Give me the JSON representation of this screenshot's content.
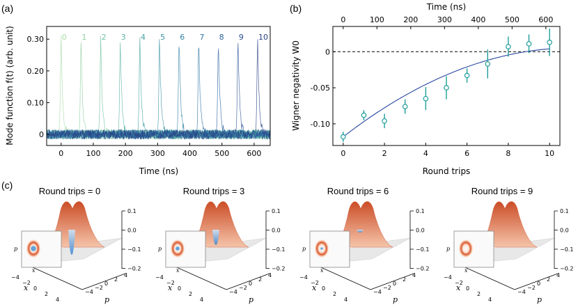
{
  "panel_labels": {
    "a": "(a)",
    "b": "(b)",
    "c": "(c)"
  },
  "chart_data": [
    {
      "type": "line",
      "panel": "(a)",
      "xlabel": "Time (ns)",
      "ylabel": "Mode function f(t) (arb. unit)",
      "xlim": [
        -45,
        650
      ],
      "ylim": [
        -0.035,
        0.34
      ],
      "x_ticks": [
        0,
        100,
        200,
        300,
        400,
        500,
        600
      ],
      "y_ticks": [
        0,
        0.1,
        0.2,
        0.3
      ],
      "y_tick_labels": [
        "0",
        "0.10",
        "0.20",
        "0.30"
      ],
      "series": [
        {
          "name": "0",
          "peak_time": 0,
          "peak_value": 0.3,
          "color": "#a7dba6"
        },
        {
          "name": "1",
          "peak_time": 62,
          "peak_value": 0.3,
          "color": "#8ccf9f"
        },
        {
          "name": "2",
          "peak_time": 123,
          "peak_value": 0.3,
          "color": "#71c29f"
        },
        {
          "name": "3",
          "peak_time": 184,
          "peak_value": 0.3,
          "color": "#5ab3a2"
        },
        {
          "name": "4",
          "peak_time": 245,
          "peak_value": 0.3,
          "color": "#48a3a3"
        },
        {
          "name": "5",
          "peak_time": 306,
          "peak_value": 0.3,
          "color": "#3b93a5"
        },
        {
          "name": "6",
          "peak_time": 367,
          "peak_value": 0.3,
          "color": "#3283a6"
        },
        {
          "name": "7",
          "peak_time": 428,
          "peak_value": 0.3,
          "color": "#2d73a4"
        },
        {
          "name": "8",
          "peak_time": 489,
          "peak_value": 0.3,
          "color": "#2b629e"
        },
        {
          "name": "9",
          "peak_time": 550,
          "peak_value": 0.3,
          "color": "#2a5193"
        },
        {
          "name": "10",
          "peak_time": 611,
          "peak_value": 0.3,
          "color": "#294283"
        }
      ],
      "noise_amplitude": 0.015
    },
    {
      "type": "scatter",
      "panel": "(b)",
      "xlabel": "Round trips",
      "ylabel": "Wigner negativity W0",
      "top_xlabel": "Time (ns)",
      "xlim": [
        -0.5,
        10.5
      ],
      "ylim": [
        -0.13,
        0.035
      ],
      "x_ticks": [
        0,
        2,
        4,
        6,
        8,
        10
      ],
      "top_x_ticks": [
        0,
        100,
        200,
        300,
        400,
        500,
        600
      ],
      "ns_per_round_trip": 61.1,
      "y_ticks": [
        -0.1,
        -0.05,
        0
      ],
      "y_tick_labels": [
        "-0.10",
        "-0.05",
        "0"
      ],
      "points": [
        {
          "x": 0,
          "y": -0.118,
          "err": 0.007
        },
        {
          "x": 1,
          "y": -0.088,
          "err": 0.007
        },
        {
          "x": 2,
          "y": -0.096,
          "err": 0.01
        },
        {
          "x": 3,
          "y": -0.076,
          "err": 0.01
        },
        {
          "x": 4,
          "y": -0.065,
          "err": 0.016
        },
        {
          "x": 5,
          "y": -0.05,
          "err": 0.016
        },
        {
          "x": 6,
          "y": -0.033,
          "err": 0.01
        },
        {
          "x": 7,
          "y": -0.017,
          "err": 0.02
        },
        {
          "x": 8,
          "y": 0.007,
          "err": 0.014
        },
        {
          "x": 9,
          "y": 0.011,
          "err": 0.013
        },
        {
          "x": 10,
          "y": 0.013,
          "err": 0.019
        }
      ],
      "fit": {
        "x_range": [
          0,
          10
        ],
        "a": -0.118,
        "b": 0.0221,
        "c": -0.00099
      },
      "reference_line": 0,
      "colors": {
        "points": "#1f9e9a",
        "fit": "#2748a0",
        "reference": "#000000"
      }
    },
    {
      "type": "surface",
      "panel": "(c)",
      "titles": [
        "Round trips = 0",
        "Round trips = 3",
        "Round trips = 6",
        "Round trips = 9"
      ],
      "z_ticks": [
        "0.1",
        "0.0",
        "−0.1",
        "−0.2"
      ],
      "xy_ticks": [
        "−4",
        "−2",
        "0",
        "2",
        "4"
      ],
      "axis_x": "x",
      "axis_p": "p",
      "inset_axis_x": "x",
      "inset_axis_p": "p",
      "dip_depth": [
        0.9,
        0.55,
        0.1,
        0.0
      ],
      "colors": {
        "positive": "#d9562b",
        "negative": "#4a93d6",
        "floor": "#e8e8e8"
      }
    }
  ]
}
